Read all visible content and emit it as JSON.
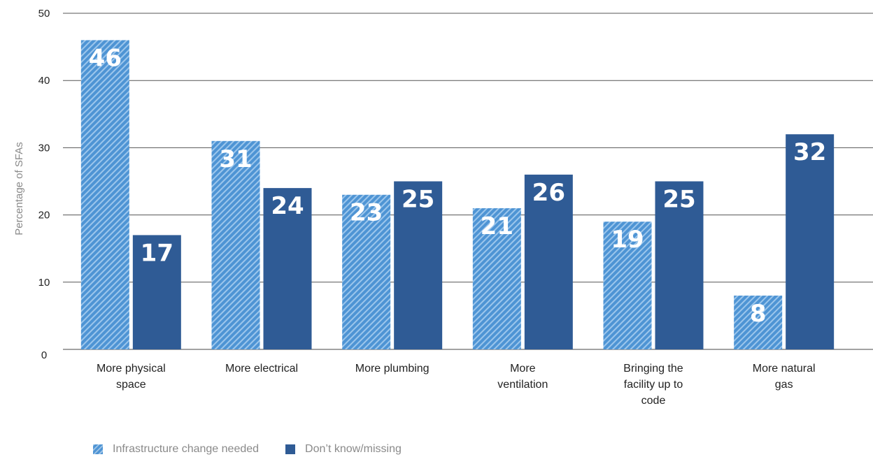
{
  "chart_data": {
    "type": "bar",
    "title": "",
    "xlabel": "",
    "ylabel": "Percentage of SFAs",
    "ylim": [
      0,
      50
    ],
    "yticks": [
      0,
      10,
      20,
      30,
      40,
      50
    ],
    "grid": true,
    "legend_position": "bottom-left",
    "categories": [
      [
        "More physical",
        "space"
      ],
      [
        "More electrical"
      ],
      [
        "More plumbing"
      ],
      [
        "More",
        "ventilation"
      ],
      [
        "Bringing the",
        "facility up to",
        "code"
      ],
      [
        "More natural",
        "gas"
      ]
    ],
    "series": [
      {
        "name": "Infrastructure change needed",
        "color": "#4e94d4",
        "pattern": "hatched",
        "values": [
          46,
          31,
          23,
          21,
          19,
          8
        ]
      },
      {
        "name": "Don’t know/missing",
        "color": "#2f5b95",
        "pattern": "solid",
        "values": [
          17,
          24,
          25,
          26,
          25,
          32
        ]
      }
    ],
    "data_labels": true
  }
}
